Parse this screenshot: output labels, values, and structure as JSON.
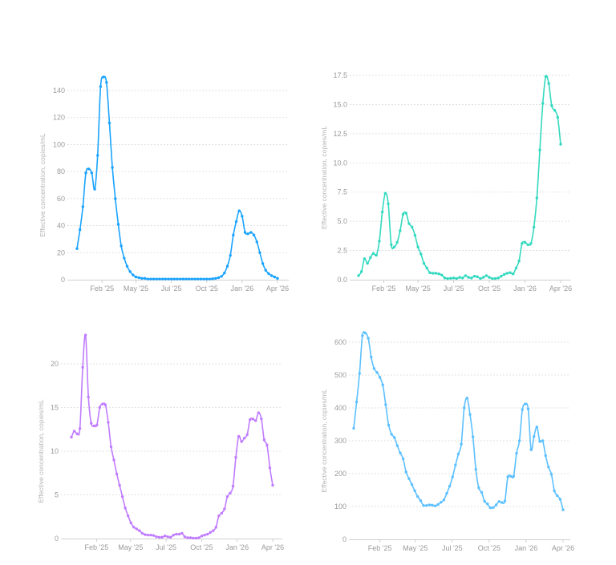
{
  "chart_data": [
    {
      "type": "line",
      "title": "",
      "ylabel": "Effective concentration, copies/mL",
      "xlabel": "",
      "color": "#1aa3ff",
      "ylim": [
        0,
        150
      ],
      "yticks": [
        0,
        20,
        40,
        60,
        80,
        100,
        120,
        140
      ],
      "xlim": [
        0,
        68
      ],
      "xticks": [
        {
          "label": "Feb '25",
          "x": 8.5
        },
        {
          "label": "May '25",
          "x": 20
        },
        {
          "label": "Jul '25",
          "x": 32
        },
        {
          "label": "Oct '25",
          "x": 44
        },
        {
          "label": "Jan '26",
          "x": 56
        },
        {
          "label": "Apr '26",
          "x": 68
        }
      ],
      "grid": true,
      "values": [
        23,
        37,
        54,
        79,
        82,
        79,
        67,
        92,
        143,
        150,
        146,
        116,
        83,
        60,
        41,
        25,
        16,
        10,
        6,
        3.5,
        2,
        1.5,
        1,
        1,
        0.5,
        0.5,
        0.5,
        0.5,
        0.5,
        0.5,
        0.5,
        0.5,
        0.5,
        0.5,
        0.5,
        0.5,
        0.5,
        0.5,
        0.5,
        0.5,
        0.5,
        0.5,
        0.5,
        0.5,
        0.5,
        0.5,
        0.7,
        1,
        1.5,
        2.5,
        5,
        10,
        18,
        33,
        43,
        51,
        47,
        35,
        34,
        35,
        33,
        28,
        20,
        12,
        7,
        4.5,
        3,
        2,
        1
      ]
    },
    {
      "type": "line",
      "title": "",
      "ylabel": "Effective concentration, copies/mL",
      "xlabel": "",
      "color": "#33d9bf",
      "ylim": [
        0,
        17.5
      ],
      "yticks": [
        0.0,
        2.5,
        5.0,
        7.5,
        10.0,
        12.5,
        15.0,
        17.5
      ],
      "ytick_labels": [
        "0.0",
        "2.5",
        "5.0",
        "7.5",
        "10.0",
        "12.5",
        "15.0",
        "17.5"
      ],
      "xlim": [
        0,
        68
      ],
      "xticks": [
        {
          "label": "Feb '25",
          "x": 8.5
        },
        {
          "label": "May '25",
          "x": 20
        },
        {
          "label": "Jul '25",
          "x": 32
        },
        {
          "label": "Oct '25",
          "x": 44
        },
        {
          "label": "Jan '26",
          "x": 56
        },
        {
          "label": "Apr '26",
          "x": 68
        }
      ],
      "grid": true,
      "values": [
        0.35,
        0.7,
        1.8,
        1.4,
        1.9,
        2.25,
        2.1,
        3.3,
        5.8,
        7.4,
        6.5,
        3.0,
        2.8,
        3.2,
        4.2,
        5.6,
        5.7,
        4.8,
        4.5,
        3.8,
        2.8,
        2.2,
        1.4,
        1.0,
        0.6,
        0.55,
        0.55,
        0.5,
        0.4,
        0.15,
        0.1,
        0.12,
        0.15,
        0.1,
        0.2,
        0.15,
        0.35,
        0.2,
        0.15,
        0.3,
        0.25,
        0.1,
        0.2,
        0.35,
        0.2,
        0.1,
        0.1,
        0.15,
        0.3,
        0.45,
        0.55,
        0.6,
        0.5,
        1.0,
        1.6,
        3.1,
        3.2,
        3.0,
        3.1,
        4.5,
        7.0,
        11.1,
        15.1,
        17.4,
        16.8,
        14.9,
        14.5,
        13.9,
        11.6
      ]
    },
    {
      "type": "line",
      "title": "",
      "ylabel": "Effective concentration, copies/mL",
      "xlabel": "",
      "color": "#c07cff",
      "ylim": [
        0,
        24
      ],
      "yticks": [
        0,
        5,
        10,
        15,
        20
      ],
      "xlim": [
        0,
        68
      ],
      "xticks": [
        {
          "label": "Feb '25",
          "x": 8.5
        },
        {
          "label": "May '25",
          "x": 20
        },
        {
          "label": "Jul '25",
          "x": 32
        },
        {
          "label": "Oct '25",
          "x": 44
        },
        {
          "label": "Jan '26",
          "x": 56
        },
        {
          "label": "Apr '26",
          "x": 68
        }
      ],
      "grid": true,
      "values": [
        11.6,
        12.3,
        12.0,
        12.6,
        19.6,
        23.3,
        16.2,
        13.2,
        12.9,
        13.0,
        15.0,
        15.4,
        15.3,
        13.3,
        10.5,
        9.0,
        7.4,
        6.1,
        4.8,
        3.5,
        2.6,
        1.8,
        1.3,
        1.1,
        0.9,
        0.6,
        0.45,
        0.4,
        0.4,
        0.35,
        0.2,
        0.15,
        0.15,
        0.3,
        0.2,
        0.15,
        0.4,
        0.5,
        0.5,
        0.6,
        0.2,
        0.1,
        0.1,
        0.05,
        0.05,
        0.1,
        0.3,
        0.4,
        0.5,
        0.7,
        0.9,
        1.3,
        2.6,
        2.9,
        3.4,
        4.8,
        5.2,
        6.0,
        9.3,
        11.7,
        11.1,
        11.5,
        11.9,
        13.6,
        13.7,
        13.5,
        14.4,
        13.7,
        11.3,
        10.7,
        8.1,
        6.1
      ]
    },
    {
      "type": "line",
      "title": "",
      "ylabel": "Effective concentration, copies/mL",
      "xlabel": "",
      "color": "#5cc0ff",
      "ylim": [
        0,
        640
      ],
      "yticks": [
        0,
        100,
        200,
        300,
        400,
        500,
        600
      ],
      "xlim": [
        0,
        68
      ],
      "xticks": [
        {
          "label": "Feb '25",
          "x": 8.5
        },
        {
          "label": "May '25",
          "x": 20
        },
        {
          "label": "Jul '25",
          "x": 32
        },
        {
          "label": "Oct '25",
          "x": 44
        },
        {
          "label": "Jan '26",
          "x": 56
        },
        {
          "label": "Apr '26",
          "x": 68
        }
      ],
      "grid": true,
      "values": [
        338,
        418,
        505,
        620,
        628,
        612,
        555,
        520,
        508,
        493,
        470,
        410,
        348,
        320,
        310,
        285,
        263,
        245,
        205,
        185,
        167,
        148,
        130,
        118,
        103,
        103,
        105,
        104,
        102,
        106,
        113,
        120,
        140,
        162,
        190,
        226,
        260,
        290,
        400,
        430,
        380,
        312,
        213,
        157,
        143,
        116,
        108,
        96,
        97,
        105,
        115,
        112,
        117,
        190,
        192,
        192,
        262,
        300,
        395,
        412,
        397,
        273,
        313,
        342,
        298,
        300,
        255,
        220,
        198,
        148,
        133,
        122,
        90
      ]
    }
  ]
}
